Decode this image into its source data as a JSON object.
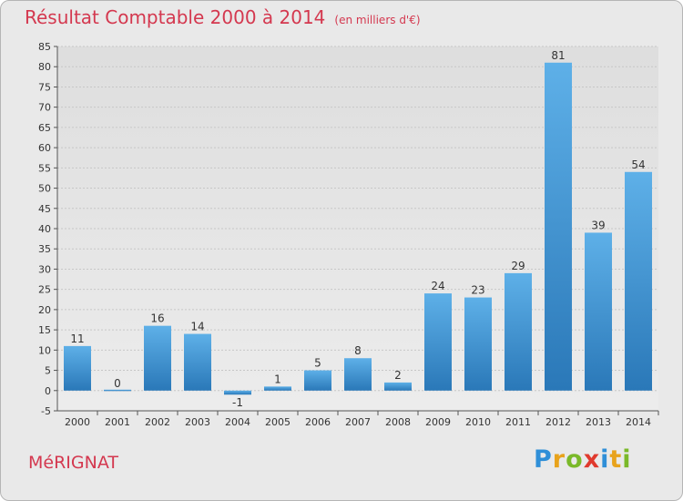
{
  "title": "Résultat Comptable 2000 à 2014",
  "subtitle": "(en milliers d'€)",
  "commune": "MéRIGNAT",
  "logo": {
    "letters": [
      "P",
      "r",
      "o",
      "x",
      "i",
      "t",
      "i"
    ],
    "colors": [
      "#2f8fd8",
      "#e8a31c",
      "#7ab929",
      "#e03a2e",
      "#2f8fd8",
      "#e8a31c",
      "#7ab929"
    ]
  },
  "colors": {
    "bar_light": "#5eb0e8",
    "bar_dark": "#2a78b8",
    "title": "#d4384f",
    "background": "#e9e9e9"
  },
  "chart_data": {
    "type": "bar",
    "categories": [
      "2000",
      "2001",
      "2002",
      "2003",
      "2004",
      "2005",
      "2006",
      "2007",
      "2008",
      "2009",
      "2010",
      "2011",
      "2012",
      "2013",
      "2014"
    ],
    "values": [
      11,
      0,
      16,
      14,
      -1,
      1,
      5,
      8,
      2,
      24,
      23,
      29,
      81,
      39,
      54
    ],
    "ylim": [
      -5,
      85
    ],
    "yticks": [
      -5,
      0,
      5,
      10,
      15,
      20,
      25,
      30,
      35,
      40,
      45,
      50,
      55,
      60,
      65,
      70,
      75,
      80,
      85
    ],
    "grid": true,
    "xlabel": "",
    "ylabel": ""
  }
}
